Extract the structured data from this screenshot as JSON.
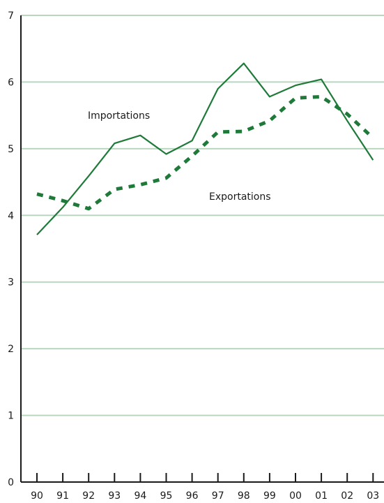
{
  "chart_data": {
    "type": "line",
    "categories": [
      "90",
      "91",
      "92",
      "93",
      "94",
      "95",
      "96",
      "97",
      "98",
      "99",
      "00",
      "01",
      "02",
      "03"
    ],
    "ylim": [
      0,
      7
    ],
    "yticks": [
      "0",
      "1",
      "2",
      "3",
      "4",
      "5",
      "6",
      "7"
    ],
    "grid": "horizontal",
    "series": [
      {
        "name": "Importations",
        "style": "solid",
        "color": "#1f7a3a",
        "values": [
          3.71,
          4.12,
          4.59,
          5.08,
          5.2,
          4.92,
          5.12,
          5.9,
          6.28,
          5.78,
          5.95,
          6.04,
          5.42,
          4.83
        ]
      },
      {
        "name": "Exportations",
        "style": "dashed",
        "color": "#1f7a3a",
        "values": [
          4.32,
          4.22,
          4.1,
          4.39,
          4.46,
          4.56,
          4.89,
          5.25,
          5.26,
          5.42,
          5.76,
          5.78,
          5.52,
          5.16
        ]
      }
    ],
    "colors": {
      "grid": "#b9d7bf",
      "axis": "#1a1a1a",
      "line": "#1f7a3a"
    }
  }
}
